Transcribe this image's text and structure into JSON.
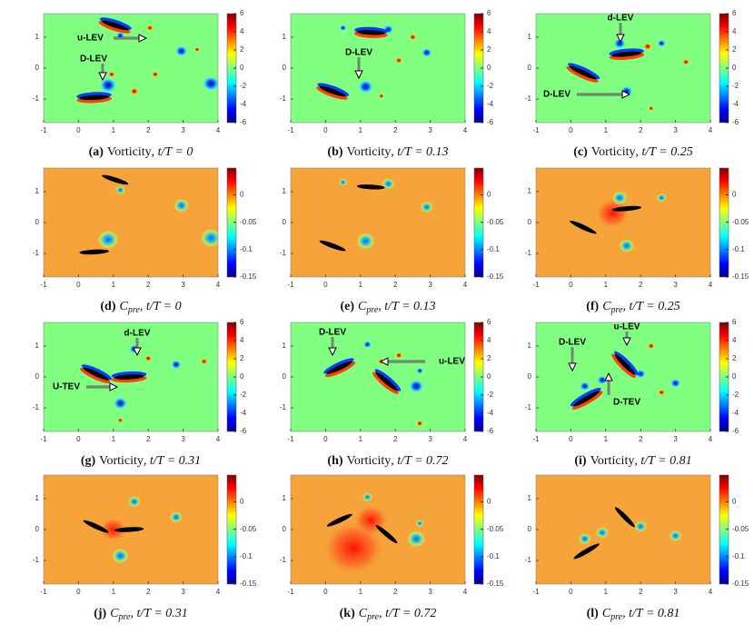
{
  "axes": {
    "xlim": [
      -1,
      4
    ],
    "ylim": [
      -1.76,
      1.76
    ],
    "xticks": [
      -1,
      0,
      1,
      2,
      3,
      4
    ],
    "yticks": [
      1,
      0,
      -1
    ]
  },
  "colorbars": {
    "vorticity": {
      "clim": [
        -6,
        6
      ],
      "ticks": [
        6,
        4,
        2,
        0,
        -2,
        -4,
        -6
      ]
    },
    "pressure": {
      "clim": [
        -0.15,
        0.049
      ],
      "ticks": [
        0,
        -0.05,
        -0.1,
        -0.15
      ]
    }
  },
  "panels": [
    {
      "label": "(a)",
      "field": "vorticity",
      "quantity": "Vorticity",
      "time": ", t/T = 0",
      "annotations": [
        "u-LEV",
        "D-LEV"
      ]
    },
    {
      "label": "(b)",
      "field": "vorticity",
      "quantity": "Vorticity",
      "time": ", t/T = 0.13",
      "annotations": [
        "D-LEV"
      ]
    },
    {
      "label": "(c)",
      "field": "vorticity",
      "quantity": "Vorticity",
      "time": ", t/T = 0.25",
      "annotations": [
        "d-LEV",
        "D-LEV"
      ]
    },
    {
      "label": "(d)",
      "field": "pressure",
      "quantity": "C",
      "subscript": "pre",
      "time": ", t/T = 0"
    },
    {
      "label": "(e)",
      "field": "pressure",
      "quantity": "C",
      "subscript": "pre",
      "time": ", t/T = 0.13"
    },
    {
      "label": "(f)",
      "field": "pressure",
      "quantity": "C",
      "subscript": "pre",
      "time": ", t/T = 0.25"
    },
    {
      "label": "(g)",
      "field": "vorticity",
      "quantity": "Vorticity",
      "time": ", t/T = 0.31",
      "annotations": [
        "d-LEV",
        "U-TEV"
      ]
    },
    {
      "label": "(h)",
      "field": "vorticity",
      "quantity": "Vorticity",
      "time": ", t/T = 0.72",
      "annotations": [
        "D-LEV",
        "u-LEV"
      ]
    },
    {
      "label": "(i)",
      "field": "vorticity",
      "quantity": "Vorticity",
      "time": ", t/T = 0.81",
      "annotations": [
        "D-LEV",
        "u-LEV",
        "D-TEV"
      ]
    },
    {
      "label": "(j)",
      "field": "pressure",
      "quantity": "C",
      "subscript": "pre",
      "time": ", t/T = 0.31"
    },
    {
      "label": "(k)",
      "field": "pressure",
      "quantity": "C",
      "subscript": "pre",
      "time": ", t/T = 0.72"
    },
    {
      "label": "(l)",
      "field": "pressure",
      "quantity": "C",
      "subscript": "pre",
      "time": ", t/T = 0.81"
    }
  ]
}
